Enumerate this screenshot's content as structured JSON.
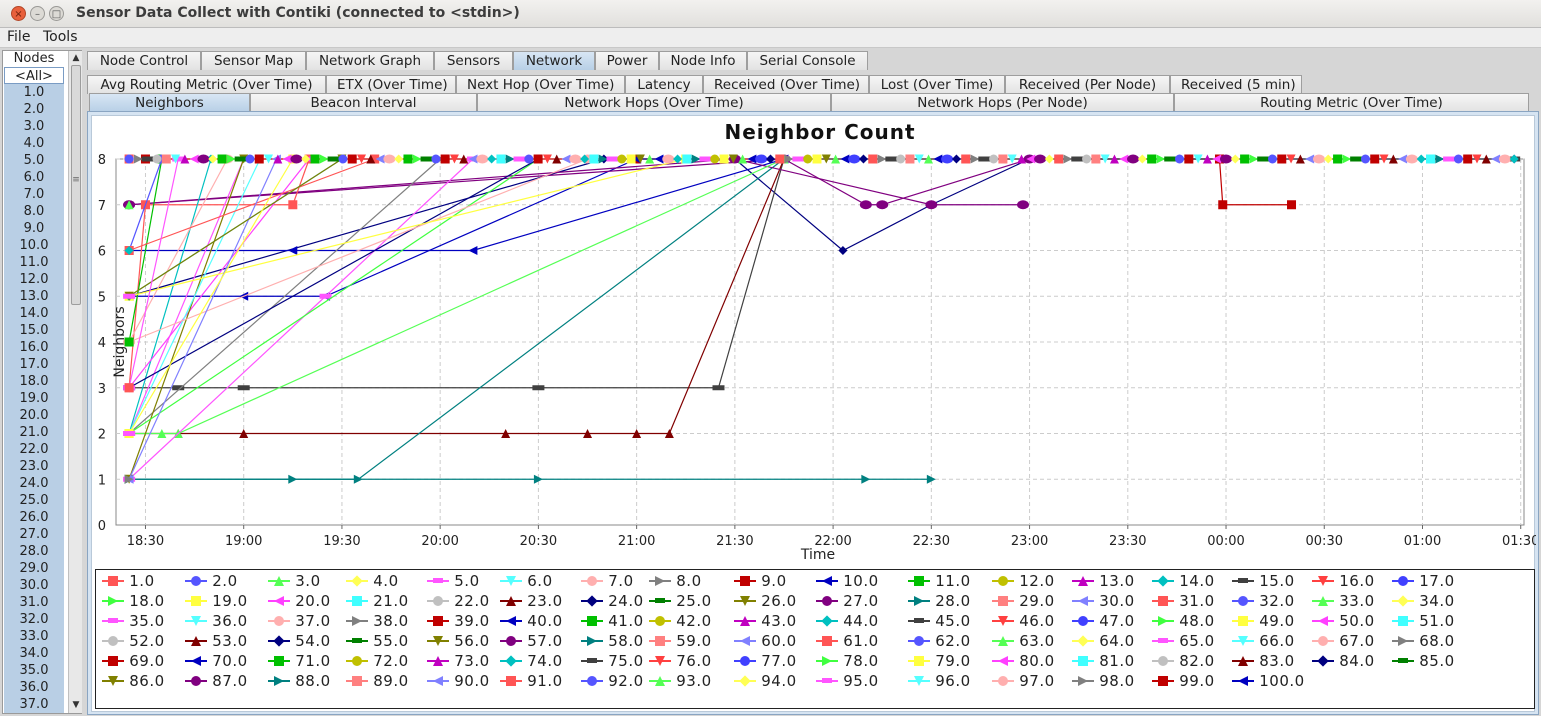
{
  "window": {
    "title": "Sensor Data Collect with Contiki (connected to <stdin>)",
    "close_glyph": "×",
    "min_glyph": "–",
    "max_glyph": "□"
  },
  "menu": [
    "File",
    "Tools"
  ],
  "sidebar": {
    "header": "Nodes",
    "items": [
      "<All>",
      "1.0",
      "2.0",
      "3.0",
      "4.0",
      "5.0",
      "6.0",
      "7.0",
      "8.0",
      "9.0",
      "10.0",
      "11.0",
      "12.0",
      "13.0",
      "14.0",
      "15.0",
      "16.0",
      "17.0",
      "18.0",
      "19.0",
      "20.0",
      "21.0",
      "22.0",
      "23.0",
      "24.0",
      "25.0",
      "26.0",
      "27.0",
      "28.0",
      "29.0",
      "30.0",
      "31.0",
      "32.0",
      "33.0",
      "34.0",
      "35.0",
      "36.0",
      "37.0"
    ],
    "scroll_up": "▲",
    "scroll_down": "▼",
    "grip": "≡"
  },
  "tabs": {
    "main": [
      "Node Control",
      "Sensor Map",
      "Network Graph",
      "Sensors",
      "Network",
      "Power",
      "Node Info",
      "Serial Console"
    ],
    "main_selected": 4,
    "sub1": [
      "Avg Routing Metric (Over Time)",
      "ETX (Over Time)",
      "Next Hop (Over Time)",
      "Latency",
      "Received (Over Time)",
      "Lost (Over Time)",
      "Received (Per Node)",
      "Received (5 min)"
    ],
    "sub2": [
      "Neighbors",
      "Beacon Interval",
      "Network Hops (Over Time)",
      "Network Hops (Per Node)",
      "Routing Metric (Over Time)"
    ],
    "sub2_selected": 0
  },
  "chart_data": {
    "type": "line",
    "title": "Neighbor Count",
    "xlabel": "Time",
    "ylabel": "Neighbors",
    "x_ticks": [
      "18:30",
      "19:00",
      "19:30",
      "20:00",
      "20:30",
      "21:00",
      "21:30",
      "22:00",
      "22:30",
      "23:00",
      "23:30",
      "00:00",
      "00:30",
      "01:00",
      "01:30"
    ],
    "y_ticks": [
      "0",
      "1",
      "2",
      "3",
      "4",
      "5",
      "6",
      "7",
      "8"
    ],
    "ylim": [
      0,
      8
    ],
    "xlim": [
      "18:21",
      "01:31"
    ],
    "grid": true,
    "legend_position": "bottom",
    "series_names": [
      "1.0",
      "2.0",
      "3.0",
      "4.0",
      "5.0",
      "6.0",
      "7.0",
      "8.0",
      "9.0",
      "10.0",
      "11.0",
      "12.0",
      "13.0",
      "14.0",
      "15.0",
      "16.0",
      "17.0",
      "18.0",
      "19.0",
      "20.0",
      "21.0",
      "22.0",
      "23.0",
      "24.0",
      "25.0",
      "26.0",
      "27.0",
      "28.0",
      "29.0",
      "30.0",
      "31.0",
      "32.0",
      "33.0",
      "34.0",
      "35.0",
      "36.0",
      "37.0",
      "38.0",
      "39.0",
      "40.0",
      "41.0",
      "42.0",
      "43.0",
      "44.0",
      "45.0",
      "46.0",
      "47.0",
      "48.0",
      "49.0",
      "50.0",
      "51.0",
      "52.0",
      "53.0",
      "54.0",
      "55.0",
      "56.0",
      "57.0",
      "58.0",
      "59.0",
      "60.0",
      "61.0",
      "62.0",
      "63.0",
      "64.0",
      "65.0",
      "66.0",
      "67.0",
      "68.0",
      "69.0",
      "70.0",
      "71.0",
      "72.0",
      "73.0",
      "74.0",
      "75.0",
      "76.0",
      "77.0",
      "78.0",
      "79.0",
      "80.0",
      "81.0",
      "82.0",
      "83.0",
      "84.0",
      "85.0",
      "86.0",
      "87.0",
      "88.0",
      "89.0",
      "90.0",
      "91.0",
      "92.0",
      "93.0",
      "94.0",
      "95.0",
      "96.0",
      "97.0",
      "98.0",
      "99.0",
      "100.0"
    ],
    "palette": [
      "#ff5555",
      "#5555ff",
      "#55ff55",
      "#ffff55",
      "#ff55ff",
      "#55ffff",
      "#ffafaf",
      "#808080",
      "#c00000",
      "#0000c0",
      "#00c000",
      "#c0c000",
      "#c000c0",
      "#00c0c0",
      "#404040",
      "#ff4040",
      "#4040ff",
      "#40ff40",
      "#ffff40",
      "#ff40ff",
      "#40ffff",
      "#c0c0c0",
      "#800000",
      "#000080",
      "#008000",
      "#808000",
      "#800080",
      "#008080",
      "#ff8080",
      "#8080ff"
    ],
    "shapes": [
      "square",
      "circle",
      "triangle-up",
      "diamond",
      "hbar",
      "triangle-down",
      "ellipse",
      "triangle-right",
      "square",
      "triangle-left"
    ],
    "series": [
      {
        "name": "9.0",
        "points": [
          [
            "18:30",
            8
          ],
          [
            "21:00",
            8
          ],
          [
            "23:58",
            8
          ],
          [
            "23:59",
            7
          ],
          [
            "00:20",
            7
          ]
        ]
      },
      {
        "name": "24.0",
        "points": [
          [
            "18:25",
            5
          ],
          [
            "20:50",
            8
          ],
          [
            "21:30",
            8
          ],
          [
            "22:03",
            6
          ],
          [
            "22:30",
            7
          ],
          [
            "23:00",
            8
          ],
          [
            "01:28",
            8
          ]
        ]
      },
      {
        "name": "15.0",
        "points": [
          [
            "18:25",
            3
          ],
          [
            "18:40",
            3
          ],
          [
            "19:00",
            3
          ],
          [
            "20:30",
            3
          ],
          [
            "21:25",
            3
          ],
          [
            "21:45",
            8
          ],
          [
            "01:28",
            8
          ]
        ]
      },
      {
        "name": "83.0",
        "points": [
          [
            "18:25",
            2
          ],
          [
            "18:40",
            2
          ],
          [
            "19:00",
            2
          ],
          [
            "20:20",
            2
          ],
          [
            "20:45",
            2
          ],
          [
            "21:00",
            2
          ],
          [
            "21:10",
            2
          ],
          [
            "21:45",
            8
          ]
        ]
      },
      {
        "name": "28.0",
        "points": [
          [
            "18:25",
            1
          ],
          [
            "19:35",
            1
          ],
          [
            "21:45",
            8
          ]
        ]
      },
      {
        "name": "58.0",
        "points": [
          [
            "18:25",
            1
          ],
          [
            "19:15",
            1
          ],
          [
            "20:30",
            1
          ],
          [
            "22:10",
            1
          ],
          [
            "22:30",
            1
          ]
        ]
      },
      {
        "name": "10.0",
        "points": [
          [
            "18:25",
            5
          ],
          [
            "19:00",
            5
          ],
          [
            "19:25",
            5
          ],
          [
            "21:00",
            8
          ]
        ]
      },
      {
        "name": "70.0",
        "points": [
          [
            "18:25",
            6
          ],
          [
            "19:15",
            6
          ],
          [
            "20:10",
            6
          ],
          [
            "21:45",
            8
          ]
        ]
      },
      {
        "name": "27.0",
        "points": [
          [
            "18:25",
            7
          ],
          [
            "21:45",
            8
          ],
          [
            "22:10",
            7
          ],
          [
            "22:15",
            7
          ],
          [
            "23:00",
            8
          ]
        ]
      },
      {
        "name": "87.0",
        "points": [
          [
            "18:25",
            7
          ],
          [
            "21:30",
            8
          ],
          [
            "22:30",
            7
          ],
          [
            "22:58",
            7
          ]
        ]
      },
      {
        "name": "33.0",
        "points": [
          [
            "18:25",
            2
          ],
          [
            "18:35",
            2
          ],
          [
            "18:40",
            2
          ],
          [
            "21:45",
            8
          ]
        ]
      },
      {
        "name": "38.0",
        "points": [
          [
            "18:25",
            2
          ],
          [
            "20:00",
            8
          ]
        ]
      },
      {
        "name": "95.0",
        "points": [
          [
            "18:25",
            1
          ],
          [
            "19:25",
            5
          ],
          [
            "20:10",
            8
          ]
        ]
      },
      {
        "name": "1.0",
        "points": [
          [
            "18:25",
            3
          ],
          [
            "18:30",
            7
          ],
          [
            "19:15",
            7
          ],
          [
            "19:20",
            8
          ]
        ]
      },
      {
        "name": "11.0",
        "points": [
          [
            "18:25",
            4
          ],
          [
            "18:35",
            8
          ]
        ]
      },
      {
        "name": "2.0",
        "points": [
          [
            "18:25",
            6
          ],
          [
            "18:35",
            8
          ]
        ]
      },
      {
        "name": "5.0",
        "points": [
          [
            "18:25",
            2
          ],
          [
            "19:00",
            8
          ]
        ]
      },
      {
        "name": "14.0",
        "points": [
          [
            "18:25",
            2
          ],
          [
            "18:50",
            8
          ]
        ]
      },
      {
        "name": "37.0",
        "points": [
          [
            "18:25",
            4
          ],
          [
            "18:55",
            8
          ]
        ]
      },
      {
        "name": "20.0",
        "points": [
          [
            "18:25",
            3
          ],
          [
            "19:20",
            8
          ]
        ]
      },
      {
        "name": "26.0",
        "points": [
          [
            "18:25",
            1
          ],
          [
            "19:00",
            8
          ]
        ]
      },
      {
        "name": "36.0",
        "points": [
          [
            "18:25",
            2
          ],
          [
            "19:05",
            8
          ]
        ]
      },
      {
        "name": "48.0",
        "points": [
          [
            "18:25",
            2
          ],
          [
            "20:30",
            8
          ]
        ]
      },
      {
        "name": "54.0",
        "points": [
          [
            "18:25",
            3
          ],
          [
            "20:30",
            8
          ]
        ]
      },
      {
        "name": "67.0",
        "points": [
          [
            "18:25",
            4
          ],
          [
            "20:45",
            8
          ]
        ]
      },
      {
        "name": "19.0",
        "points": [
          [
            "18:25",
            5
          ],
          [
            "21:15",
            8
          ]
        ]
      },
      {
        "name": "31.0",
        "points": [
          [
            "18:25",
            6
          ],
          [
            "19:40",
            8
          ]
        ]
      },
      {
        "name": "44.0",
        "points": [
          [
            "18:25",
            5
          ],
          [
            "19:30",
            8
          ]
        ]
      },
      {
        "name": "60.0",
        "points": [
          [
            "18:25",
            1
          ],
          [
            "19:10",
            8
          ]
        ]
      },
      {
        "name": "86.0",
        "points": [
          [
            "18:25",
            5
          ],
          [
            "19:30",
            8
          ]
        ]
      },
      {
        "name": "35.0",
        "points": [
          [
            "18:25",
            3
          ],
          [
            "18:40",
            8
          ]
        ]
      },
      {
        "name": "49.0",
        "points": [
          [
            "18:25",
            2
          ],
          [
            "19:15",
            8
          ]
        ]
      }
    ]
  }
}
